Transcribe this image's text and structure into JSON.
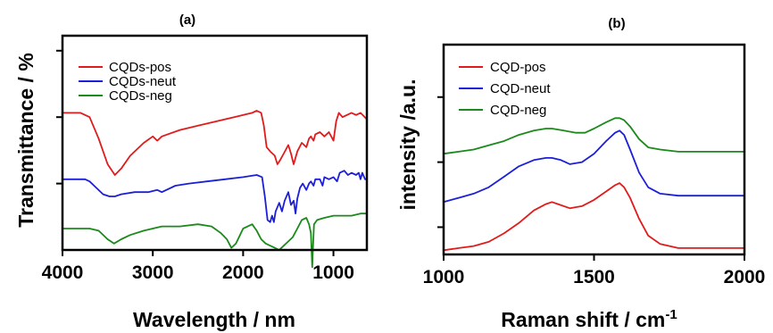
{
  "chart_data": [
    {
      "panel": "(a)",
      "type": "line",
      "xlabel": "Wavelength / nm",
      "ylabel": "Transmittance / %",
      "xlim": [
        4000,
        630
      ],
      "ylim": [
        0,
        100
      ],
      "x_ticks": [
        4000,
        3000,
        2000,
        1000
      ],
      "y_ticks": [
        31,
        62,
        93
      ],
      "legend_placement": "top-left",
      "series": [
        {
          "name": "CQDs-pos",
          "color": "#e01b1b",
          "points": [
            [
              4000,
              64
            ],
            [
              3800,
              64
            ],
            [
              3700,
              62
            ],
            [
              3600,
              52
            ],
            [
              3500,
              40
            ],
            [
              3420,
              35
            ],
            [
              3350,
              38
            ],
            [
              3250,
              44
            ],
            [
              3100,
              50
            ],
            [
              3000,
              53
            ],
            [
              2950,
              51
            ],
            [
              2900,
              53
            ],
            [
              2700,
              56
            ],
            [
              2500,
              58
            ],
            [
              2300,
              60
            ],
            [
              2100,
              62
            ],
            [
              1900,
              64
            ],
            [
              1850,
              65
            ],
            [
              1800,
              64
            ],
            [
              1770,
              58
            ],
            [
              1740,
              48
            ],
            [
              1700,
              46
            ],
            [
              1650,
              44
            ],
            [
              1620,
              40
            ],
            [
              1590,
              42
            ],
            [
              1550,
              45
            ],
            [
              1500,
              49
            ],
            [
              1470,
              45
            ],
            [
              1440,
              40
            ],
            [
              1400,
              46
            ],
            [
              1350,
              50
            ],
            [
              1300,
              48
            ],
            [
              1270,
              52
            ],
            [
              1250,
              53
            ],
            [
              1220,
              51
            ],
            [
              1200,
              54
            ],
            [
              1150,
              55
            ],
            [
              1100,
              53
            ],
            [
              1050,
              55
            ],
            [
              1000,
              51
            ],
            [
              970,
              60
            ],
            [
              940,
              64
            ],
            [
              900,
              62
            ],
            [
              850,
              63
            ],
            [
              800,
              64
            ],
            [
              750,
              63
            ],
            [
              700,
              64
            ],
            [
              630,
              61
            ]
          ]
        },
        {
          "name": "CQDs-neut",
          "color": "#1c1fd8",
          "points": [
            [
              4000,
              33
            ],
            [
              3750,
              33
            ],
            [
              3700,
              32
            ],
            [
              3650,
              30
            ],
            [
              3550,
              26
            ],
            [
              3480,
              25
            ],
            [
              3420,
              25
            ],
            [
              3350,
              26
            ],
            [
              3200,
              27
            ],
            [
              3050,
              27
            ],
            [
              2950,
              28
            ],
            [
              2900,
              27
            ],
            [
              2750,
              30
            ],
            [
              2600,
              31
            ],
            [
              2400,
              32
            ],
            [
              2200,
              33
            ],
            [
              2000,
              34
            ],
            [
              1850,
              35
            ],
            [
              1790,
              34
            ],
            [
              1760,
              25
            ],
            [
              1730,
              14
            ],
            [
              1700,
              13
            ],
            [
              1680,
              16
            ],
            [
              1660,
              13
            ],
            [
              1640,
              18
            ],
            [
              1600,
              22
            ],
            [
              1570,
              18
            ],
            [
              1540,
              23
            ],
            [
              1500,
              27
            ],
            [
              1470,
              21
            ],
            [
              1440,
              23
            ],
            [
              1420,
              17
            ],
            [
              1400,
              24
            ],
            [
              1370,
              29
            ],
            [
              1340,
              31
            ],
            [
              1300,
              28
            ],
            [
              1270,
              31
            ],
            [
              1250,
              32
            ],
            [
              1220,
              30
            ],
            [
              1200,
              33
            ],
            [
              1150,
              33
            ],
            [
              1120,
              30
            ],
            [
              1100,
              34
            ],
            [
              1050,
              33
            ],
            [
              1000,
              34
            ],
            [
              960,
              32
            ],
            [
              930,
              36
            ],
            [
              880,
              37
            ],
            [
              840,
              35
            ],
            [
              800,
              36
            ],
            [
              750,
              35
            ],
            [
              720,
              36
            ],
            [
              700,
              33
            ],
            [
              680,
              36
            ],
            [
              650,
              33
            ],
            [
              630,
              33
            ]
          ]
        },
        {
          "name": "CQDs-neg",
          "color": "#1a8a1a",
          "points": [
            [
              4000,
              10
            ],
            [
              3800,
              10
            ],
            [
              3700,
              10
            ],
            [
              3600,
              9
            ],
            [
              3500,
              5
            ],
            [
              3430,
              3
            ],
            [
              3350,
              5
            ],
            [
              3250,
              7
            ],
            [
              3100,
              9
            ],
            [
              3000,
              10
            ],
            [
              2900,
              11
            ],
            [
              2700,
              11
            ],
            [
              2500,
              12
            ],
            [
              2350,
              11
            ],
            [
              2250,
              8
            ],
            [
              2180,
              5
            ],
            [
              2130,
              1
            ],
            [
              2080,
              3
            ],
            [
              2000,
              10
            ],
            [
              1900,
              12
            ],
            [
              1850,
              9
            ],
            [
              1800,
              5
            ],
            [
              1750,
              3
            ],
            [
              1700,
              2
            ],
            [
              1650,
              1
            ],
            [
              1600,
              0
            ],
            [
              1550,
              2
            ],
            [
              1500,
              4
            ],
            [
              1450,
              6
            ],
            [
              1400,
              10
            ],
            [
              1350,
              14
            ],
            [
              1300,
              15
            ],
            [
              1270,
              12
            ],
            [
              1250,
              8
            ],
            [
              1235,
              -8
            ],
            [
              1228,
              0
            ],
            [
              1215,
              12
            ],
            [
              1180,
              14
            ],
            [
              1100,
              15
            ],
            [
              1000,
              16
            ],
            [
              900,
              16
            ],
            [
              800,
              16
            ],
            [
              700,
              17
            ],
            [
              630,
              17
            ]
          ]
        }
      ]
    },
    {
      "panel": "(b)",
      "type": "line",
      "xlabel": "Raman shift / cm",
      "xlabel_superscript": "-1",
      "ylabel": "intensity /a.u.",
      "xlim": [
        1000,
        2000
      ],
      "ylim": [
        0,
        100
      ],
      "x_ticks": [
        1000,
        1500,
        2000
      ],
      "y_ticks": [
        13,
        44,
        75
      ],
      "legend_placement": "top-left",
      "series": [
        {
          "name": "CQD-pos",
          "color": "#e01b1b",
          "points": [
            [
              1000,
              2
            ],
            [
              1050,
              3
            ],
            [
              1100,
              4
            ],
            [
              1150,
              6
            ],
            [
              1200,
              10
            ],
            [
              1250,
              15
            ],
            [
              1300,
              21
            ],
            [
              1340,
              24
            ],
            [
              1360,
              25
            ],
            [
              1380,
              24
            ],
            [
              1420,
              22
            ],
            [
              1460,
              23
            ],
            [
              1500,
              26
            ],
            [
              1540,
              30
            ],
            [
              1570,
              33
            ],
            [
              1585,
              34
            ],
            [
              1600,
              32
            ],
            [
              1620,
              27
            ],
            [
              1650,
              17
            ],
            [
              1680,
              9
            ],
            [
              1720,
              5
            ],
            [
              1780,
              3
            ],
            [
              1850,
              3
            ],
            [
              1950,
              3
            ],
            [
              2000,
              3
            ]
          ]
        },
        {
          "name": "CQD-neut",
          "color": "#1c1fd8",
          "points": [
            [
              1000,
              25
            ],
            [
              1050,
              27
            ],
            [
              1100,
              29
            ],
            [
              1150,
              32
            ],
            [
              1200,
              37
            ],
            [
              1250,
              42
            ],
            [
              1300,
              45
            ],
            [
              1340,
              46
            ],
            [
              1360,
              46
            ],
            [
              1390,
              45
            ],
            [
              1420,
              43
            ],
            [
              1460,
              44
            ],
            [
              1500,
              48
            ],
            [
              1540,
              54
            ],
            [
              1570,
              58
            ],
            [
              1585,
              59
            ],
            [
              1600,
              57
            ],
            [
              1620,
              50
            ],
            [
              1650,
              39
            ],
            [
              1680,
              32
            ],
            [
              1720,
              29
            ],
            [
              1780,
              28
            ],
            [
              1850,
              28
            ],
            [
              1950,
              28
            ],
            [
              2000,
              28
            ]
          ]
        },
        {
          "name": "CQD-neg",
          "color": "#1a8a1a",
          "points": [
            [
              1000,
              48
            ],
            [
              1050,
              49
            ],
            [
              1100,
              50
            ],
            [
              1150,
              52
            ],
            [
              1200,
              54
            ],
            [
              1250,
              57
            ],
            [
              1300,
              59
            ],
            [
              1340,
              60
            ],
            [
              1360,
              60
            ],
            [
              1400,
              59
            ],
            [
              1440,
              58
            ],
            [
              1470,
              58
            ],
            [
              1500,
              60
            ],
            [
              1540,
              63
            ],
            [
              1570,
              65
            ],
            [
              1585,
              65
            ],
            [
              1600,
              64
            ],
            [
              1620,
              61
            ],
            [
              1650,
              55
            ],
            [
              1680,
              51
            ],
            [
              1720,
              50
            ],
            [
              1780,
              49
            ],
            [
              1850,
              49
            ],
            [
              1950,
              49
            ],
            [
              2000,
              49
            ]
          ]
        }
      ]
    }
  ]
}
